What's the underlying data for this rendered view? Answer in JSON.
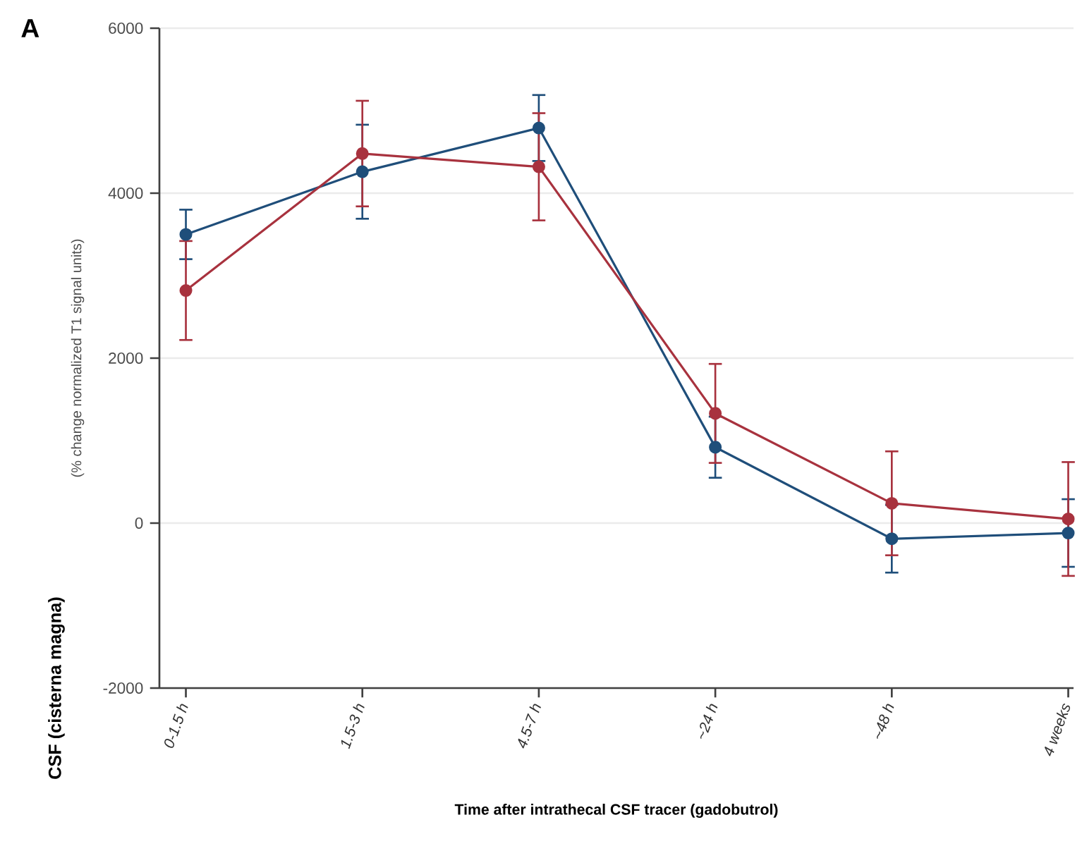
{
  "chart_data": {
    "type": "line",
    "title": "A",
    "xlabel": "Time after intrathecal CSF tracer (gadobutrol)",
    "ylabel": "CSF (cisterna magna)",
    "annotations": [
      "(% change normalized T1 signal units)"
    ],
    "categories": [
      "0-1.5 h",
      "1.5-3 h",
      "4.5-7 h",
      "~24 h",
      "~48 h",
      "4 weeks"
    ],
    "ylim": [
      -2000,
      6000
    ],
    "yticks": [
      -2000,
      0,
      2000,
      4000,
      6000
    ],
    "grid": "y",
    "marker": "circle",
    "line_style": "solid",
    "series": [
      {
        "color": "#1f4e7a",
        "values": [
          3500,
          4260,
          4790,
          920,
          -190,
          -120
        ],
        "errors": [
          300,
          570,
          400,
          370,
          410,
          410
        ]
      },
      {
        "color": "#a8323e",
        "values": [
          2820,
          4480,
          4320,
          1330,
          240,
          50
        ],
        "errors": [
          600,
          640,
          650,
          600,
          630,
          690
        ]
      }
    ]
  }
}
